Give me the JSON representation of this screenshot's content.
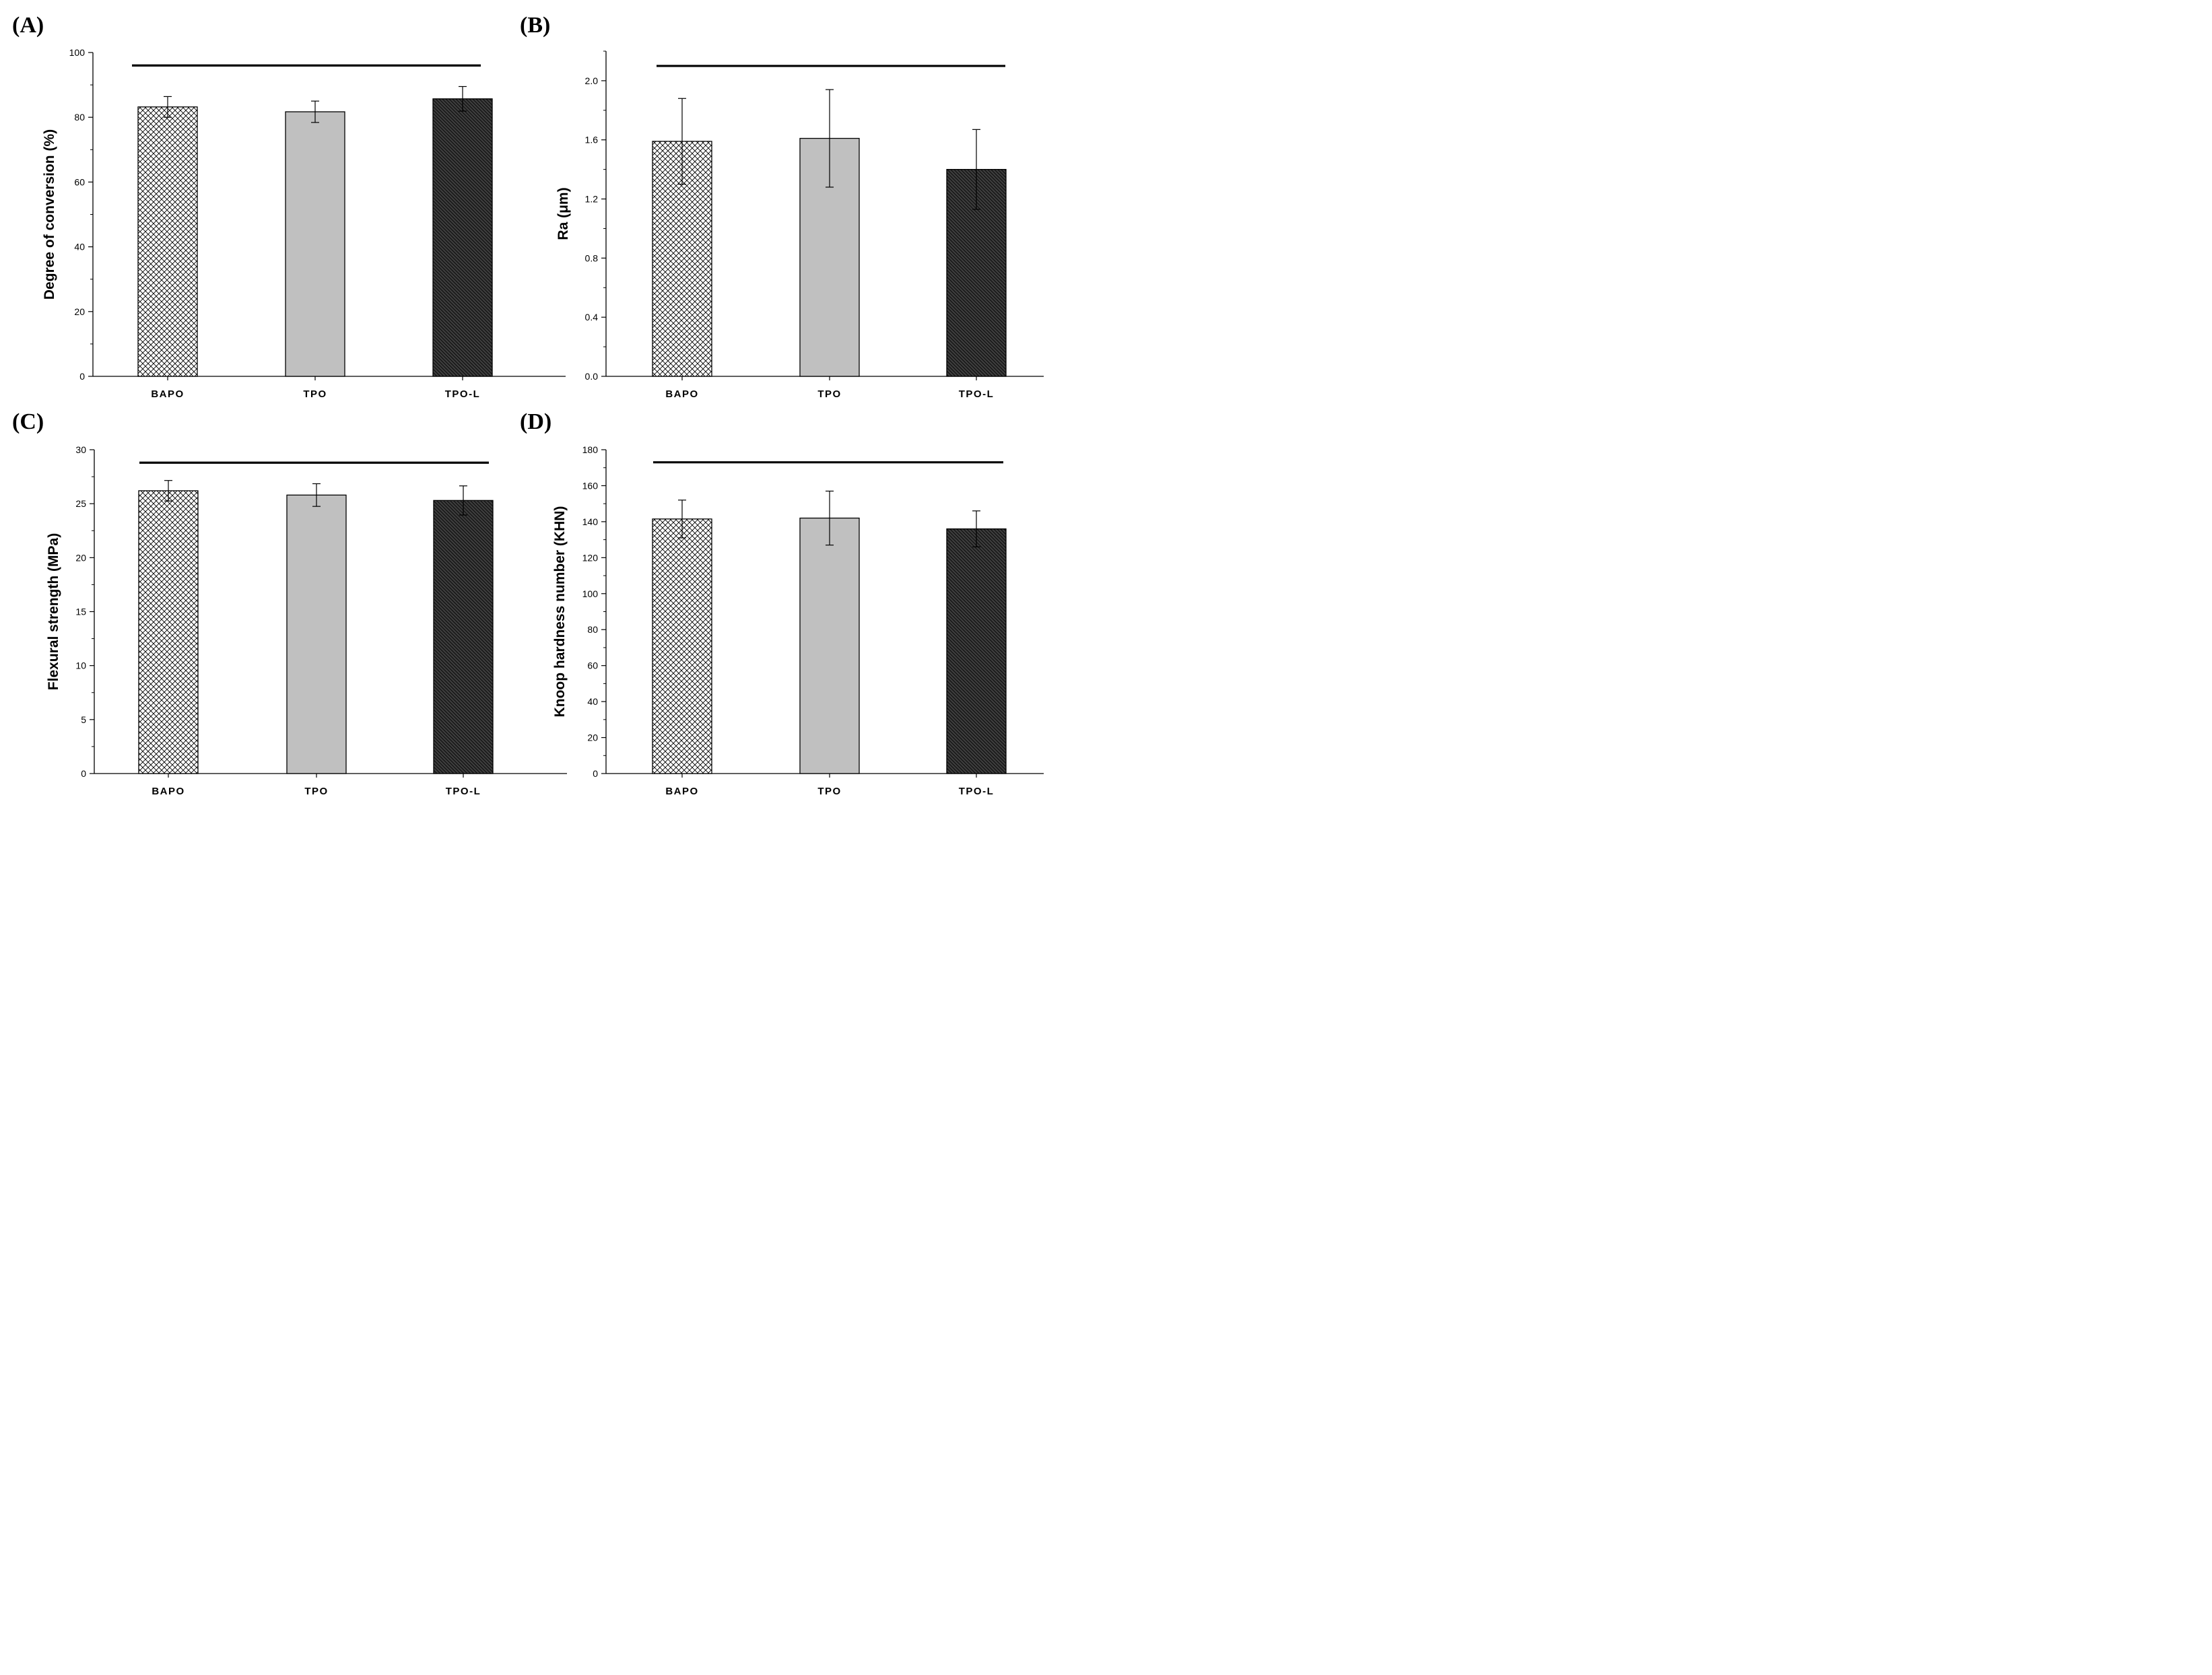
{
  "chart_data": [
    {
      "panel": "(A)",
      "type": "bar",
      "categories": [
        "BAPO",
        "TPO",
        "TPO-L"
      ],
      "values": [
        83.2,
        81.7,
        85.7
      ],
      "errors": [
        3.2,
        3.3,
        3.8
      ],
      "ylabel": "Degree of conversion (%)",
      "xlabel": "",
      "ylim": [
        0,
        100
      ],
      "yticks": [
        0,
        20,
        40,
        60,
        80,
        100
      ],
      "significance_bar_level": 96
    },
    {
      "panel": "(B)",
      "type": "bar",
      "categories": [
        "BAPO",
        "TPO",
        "TPO-L"
      ],
      "values": [
        1.59,
        1.61,
        1.4
      ],
      "errors": [
        0.29,
        0.33,
        0.27
      ],
      "ylabel": "Ra (μm)",
      "xlabel": "",
      "ylim": [
        0,
        2.2
      ],
      "yticks": [
        "0.0",
        "0.4",
        "0.8",
        "1.2",
        "1.6",
        "2.0"
      ],
      "significance_bar_level": 2.1
    },
    {
      "panel": "(C)",
      "type": "bar",
      "categories": [
        "BAPO",
        "TPO",
        "TPO-L"
      ],
      "values": [
        26.2,
        25.8,
        25.3
      ],
      "errors": [
        0.95,
        1.05,
        1.35
      ],
      "ylabel": "Flexural strength (MPa)",
      "xlabel": "",
      "ylim": [
        0,
        30
      ],
      "yticks": [
        0,
        5,
        10,
        15,
        20,
        25,
        30
      ],
      "significance_bar_level": 28.8
    },
    {
      "panel": "(D)",
      "type": "bar",
      "categories": [
        "BAPO",
        "TPO",
        "TPO-L"
      ],
      "values": [
        141.5,
        142,
        136
      ],
      "errors": [
        10.5,
        15,
        10
      ],
      "ylabel": "Knoop hardness number (KHN)",
      "xlabel": "",
      "ylim": [
        0,
        180
      ],
      "yticks": [
        0,
        20,
        40,
        60,
        80,
        100,
        120,
        140,
        160,
        180
      ],
      "significance_bar_level": 173
    }
  ],
  "colors": {
    "bar_fill_tpo": "#c0c0c0",
    "bar_fill_tpol": "#3e3e3e",
    "line": "#000000",
    "background": "#ffffff"
  }
}
